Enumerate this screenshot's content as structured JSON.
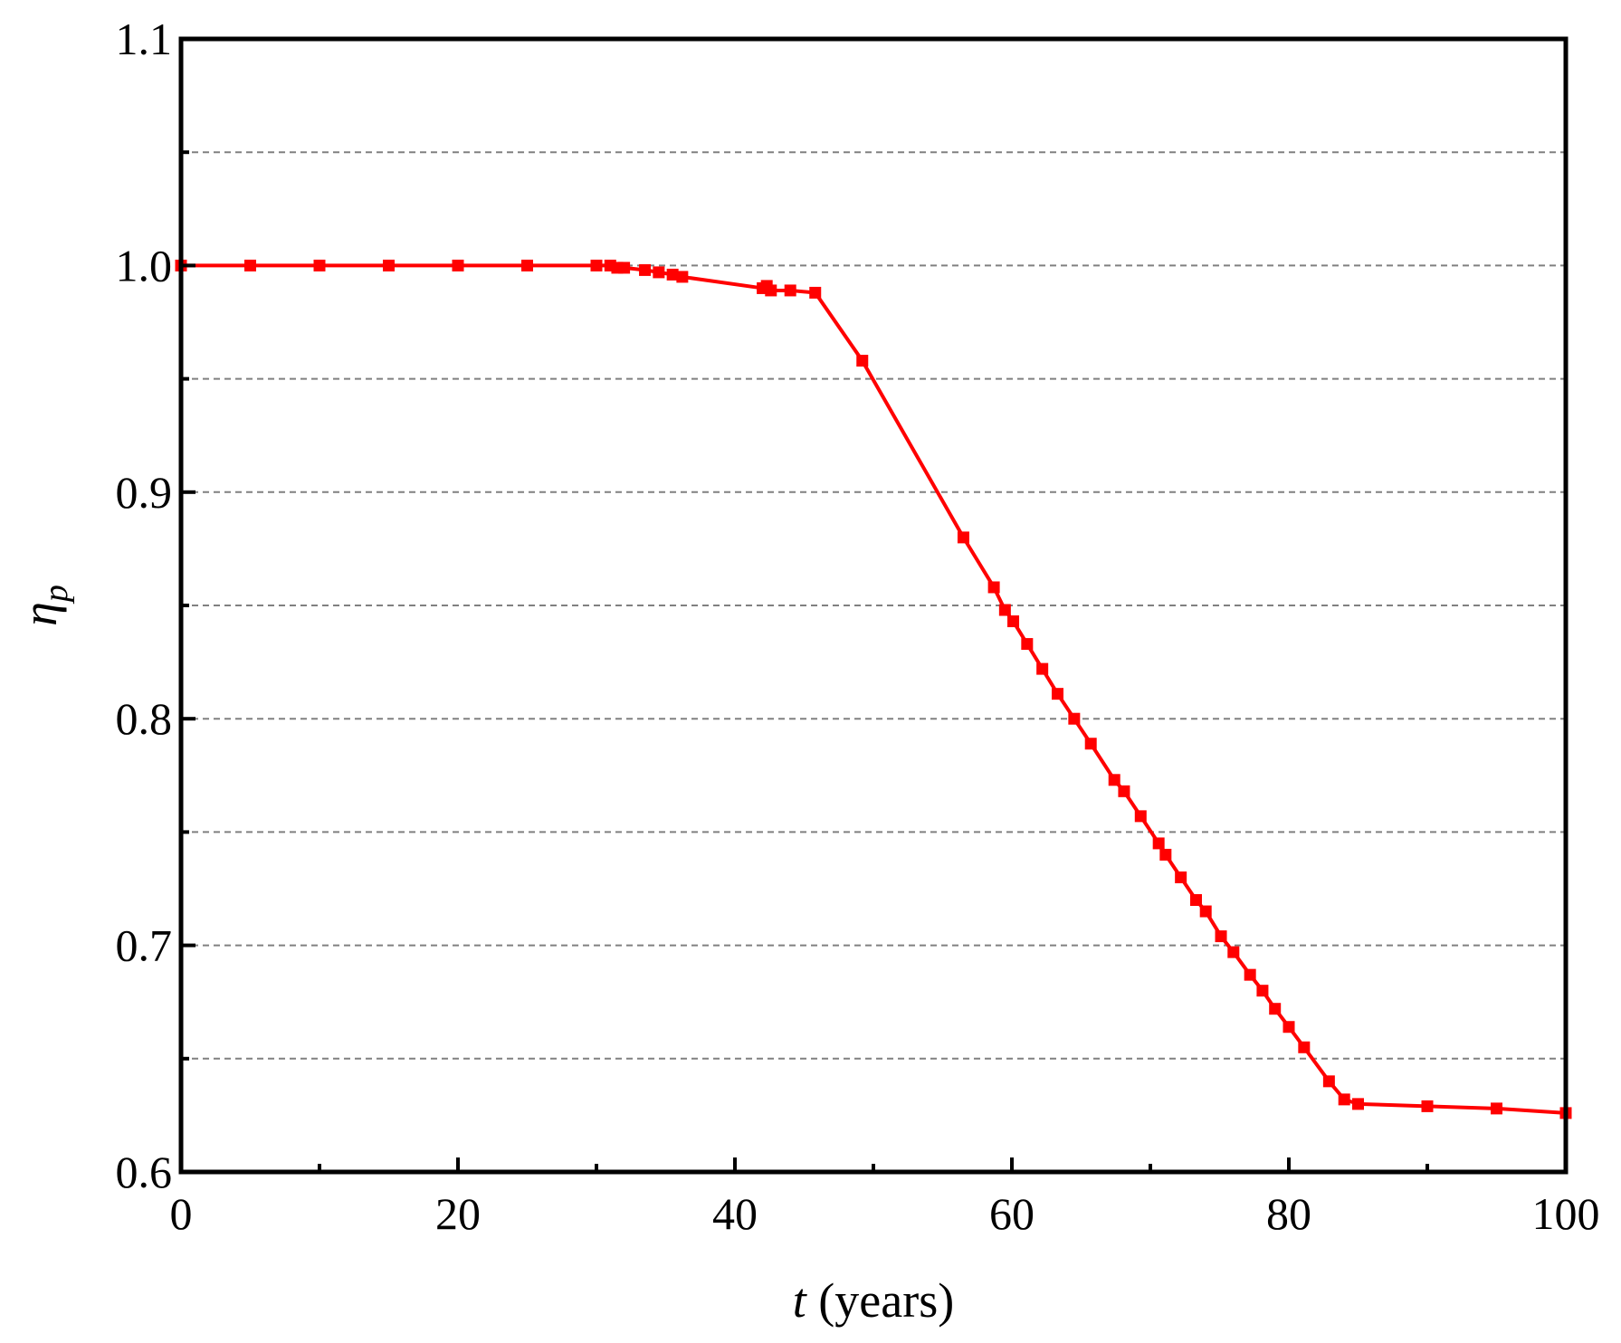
{
  "chart_data": {
    "type": "line",
    "xlabel_var": "t",
    "xlabel_unit": " (years)",
    "ylabel_var": "η",
    "ylabel_sub": "p",
    "xlim": [
      0,
      100
    ],
    "ylim": [
      0.6,
      1.1
    ],
    "x_ticks": [
      0,
      20,
      40,
      60,
      80,
      100
    ],
    "x_tick_labels": [
      "0",
      "20",
      "40",
      "60",
      "80",
      "100"
    ],
    "x_minor_ticks": [
      10,
      30,
      50,
      70,
      90
    ],
    "y_ticks": [
      0.6,
      0.7,
      0.8,
      0.9,
      1.0,
      1.1
    ],
    "y_tick_labels": [
      "0.6",
      "0.7",
      "0.8",
      "0.9",
      "1.0",
      "1.1"
    ],
    "y_minor_ticks": [
      0.65,
      0.75,
      0.85,
      0.95,
      1.05
    ],
    "grid": "dashed horizontal at 0.05 intervals",
    "legend": "none",
    "series": [
      {
        "color": "#ff0000",
        "marker": "square",
        "x": [
          0,
          5,
          10,
          15,
          20,
          25,
          30,
          31,
          31.5,
          32,
          33.5,
          34.5,
          35.5,
          36.2,
          42,
          42.3,
          42.6,
          44,
          45.8,
          49.2,
          56.5,
          58.7,
          59.5,
          60.1,
          61.1,
          62.2,
          63.3,
          64.5,
          65.7,
          67.4,
          68.1,
          69.3,
          70.6,
          71.1,
          72.2,
          73.3,
          74,
          75.1,
          76,
          77.2,
          78.1,
          79,
          80,
          81.1,
          82.9,
          84,
          85,
          90,
          95,
          100
        ],
        "y": [
          1.0,
          1.0,
          1.0,
          1.0,
          1.0,
          1.0,
          1.0,
          1.0,
          0.999,
          0.999,
          0.998,
          0.997,
          0.996,
          0.995,
          0.99,
          0.991,
          0.989,
          0.989,
          0.988,
          0.958,
          0.88,
          0.858,
          0.848,
          0.843,
          0.833,
          0.822,
          0.811,
          0.8,
          0.789,
          0.773,
          0.768,
          0.757,
          0.745,
          0.74,
          0.73,
          0.72,
          0.715,
          0.704,
          0.697,
          0.687,
          0.68,
          0.672,
          0.664,
          0.655,
          0.64,
          0.632,
          0.63,
          0.629,
          0.628,
          0.626
        ]
      }
    ]
  }
}
